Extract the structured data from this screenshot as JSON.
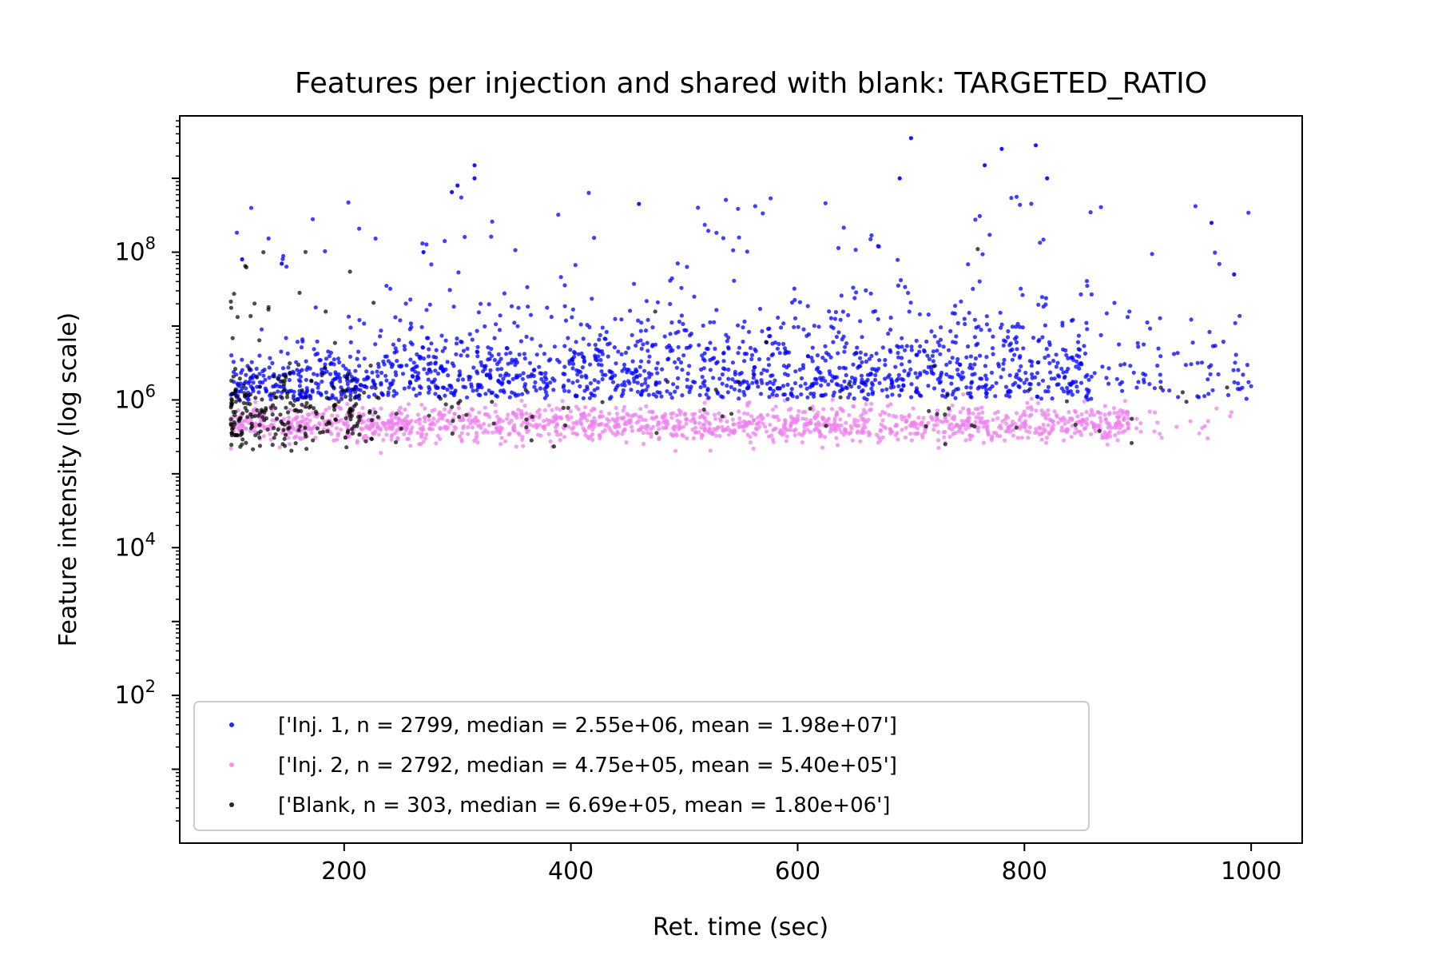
{
  "chart_data": {
    "type": "scatter",
    "title": "Features per injection and shared with blank: TARGETED_RATIO",
    "xlabel": "Ret. time (sec)",
    "ylabel": "Feature intensity (log scale)",
    "xlim": [
      55,
      1045
    ],
    "ylim": [
      1,
      7000000000
    ],
    "yscale": "log",
    "x_ticks": [
      200,
      400,
      600,
      800,
      1000
    ],
    "y_ticks": [
      {
        "value": 100,
        "base": "10",
        "exp": "2"
      },
      {
        "value": 10000,
        "base": "10",
        "exp": "4"
      },
      {
        "value": 1000000,
        "base": "10",
        "exp": "6"
      },
      {
        "value": 100000000,
        "base": "10",
        "exp": "8"
      }
    ],
    "legend_position": "lower-left",
    "series": [
      {
        "name": "['Inj. 1, n = 2799, median = 2.55e+06, mean = 1.98e+07']",
        "color": "#0000ff",
        "n": 2799,
        "x_range": [
          100,
          1000
        ],
        "y_median": 2550000,
        "y_lower": 1000000,
        "y_max": 3500000000,
        "highlights": [
          [
            700,
            3500000000
          ],
          [
            780,
            2500000000
          ],
          [
            810,
            2800000000
          ],
          [
            765,
            1500000000
          ],
          [
            315,
            1500000000
          ],
          [
            315,
            1000000000
          ],
          [
            300,
            800000000
          ],
          [
            295,
            650000000
          ],
          [
            690,
            1000000000
          ],
          [
            820,
            1000000000
          ],
          [
            460,
            450000000
          ],
          [
            965,
            250000000
          ],
          [
            985,
            50000000
          ],
          [
            110,
            80000000
          ],
          [
            145,
            70000000
          ],
          [
            270,
            100000000
          ]
        ]
      },
      {
        "name": "['Inj. 2, n = 2792, median = 4.75e+05, mean = 5.40e+05']",
        "color": "#ee82ee",
        "n": 2792,
        "x_range": [
          100,
          1000
        ],
        "y_median": 475000,
        "y_lower": 180000,
        "y_upper": 1200000
      },
      {
        "name": "['Blank, n = 303, median = 6.69e+05, mean = 1.80e+06']",
        "color": "#000000",
        "n": 303,
        "x_range": [
          100,
          1000
        ],
        "y_median": 669000,
        "y_lower": 200000,
        "y_upper": 30000000
      }
    ]
  }
}
